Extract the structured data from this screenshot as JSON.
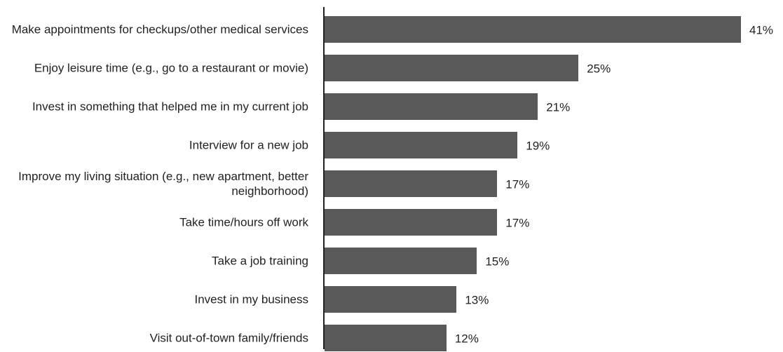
{
  "chart_data": {
    "type": "bar",
    "orientation": "horizontal",
    "categories": [
      "Make appointments for checkups/other medical services",
      "Enjoy leisure time (e.g., go to a restaurant or movie)",
      "Invest in something that helped me in my current job",
      "Interview for a new job",
      "Improve my living situation (e.g., new apartment, better neighborhood)",
      "Take time/hours off work",
      "Take a job training",
      "Invest in my business",
      "Visit out-of-town family/friends"
    ],
    "values": [
      41,
      25,
      21,
      19,
      17,
      17,
      15,
      13,
      12
    ],
    "value_labels": [
      "41%",
      "25%",
      "21%",
      "19%",
      "17%",
      "17%",
      "15%",
      "13%",
      "12%"
    ],
    "color": "#595959"
  }
}
